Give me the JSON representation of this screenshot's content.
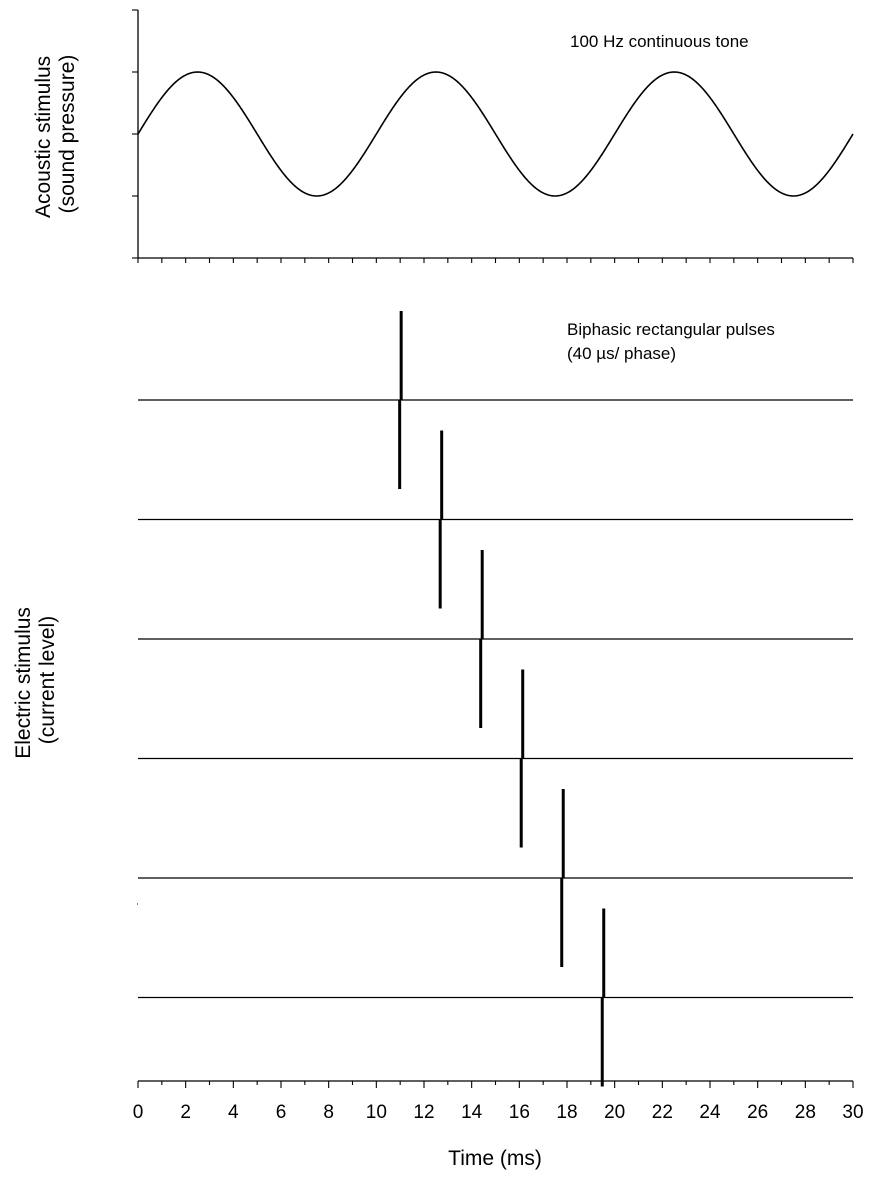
{
  "chart_data": [
    {
      "type": "line",
      "panel": "acoustic",
      "ylabel": [
        "Acoustic stimulus",
        "(sound pressure)"
      ],
      "annotation": "100 Hz continuous tone",
      "frequency_hz": 100,
      "xlim": [
        0,
        30
      ],
      "series": [
        {
          "x": [
            0,
            2.5,
            5,
            7.5,
            10,
            12.5,
            15,
            17.5,
            20,
            22.5,
            25,
            27.5,
            30
          ],
          "y": [
            0,
            1,
            0,
            -1,
            0,
            1,
            0,
            -1,
            0,
            1,
            0,
            -1,
            0
          ]
        }
      ]
    },
    {
      "type": "pulse-trains",
      "panel": "electric",
      "ylabel": [
        "Electric stimulus",
        "(current level)"
      ],
      "annotation": [
        "Biphasic rectangular pulses",
        "(40 µs/ phase)"
      ],
      "xlim": [
        0,
        30
      ],
      "pulse_times_ms": [
        11.0,
        12.7,
        14.4,
        16.1,
        17.8,
        19.5
      ]
    }
  ],
  "x_axis": {
    "label": "Time (ms)",
    "tick_labels": [
      "0",
      "2",
      "4",
      "6",
      "8",
      "10",
      "12",
      "14",
      "16",
      "18",
      "20",
      "22",
      "24",
      "26",
      "28",
      "30"
    ]
  }
}
